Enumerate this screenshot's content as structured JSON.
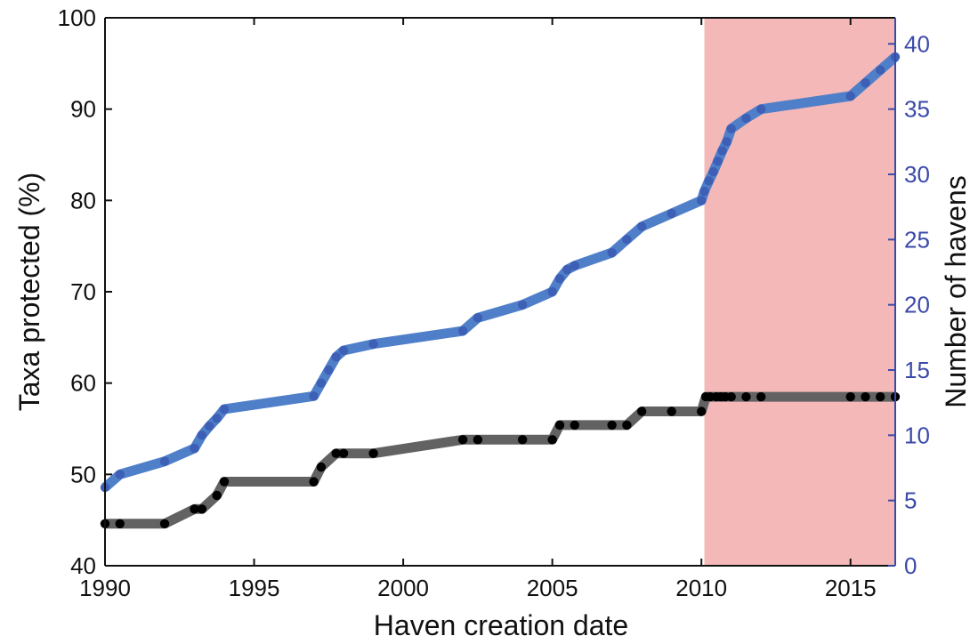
{
  "chart_data": {
    "type": "line",
    "xlabel": "Haven creation date",
    "ylabel_left": "Taxa protected (%)",
    "ylabel_right": "Number of havens",
    "xlim": [
      1990,
      2016.5
    ],
    "ylim_left": [
      40,
      100
    ],
    "ylim_right": [
      0,
      42
    ],
    "x_ticks": [
      1990,
      1995,
      2000,
      2005,
      2010,
      2015
    ],
    "y_ticks_left": [
      40,
      50,
      60,
      70,
      80,
      90,
      100
    ],
    "y_ticks_right": [
      0,
      5,
      10,
      15,
      20,
      25,
      30,
      35,
      40
    ],
    "grid": false,
    "highlight_region": {
      "x": [
        2010.1,
        2016.5
      ],
      "color": "#f4b8b8"
    },
    "colors": {
      "right_axis": "#3b4aa8",
      "havens_line": "#4f7fc9",
      "havens_marker": "#3d5fb5",
      "taxa_line": "#626262",
      "taxa_marker": "#000000"
    },
    "series": [
      {
        "axis": "right",
        "x": [
          1990,
          1990.5,
          1992,
          1993,
          1993.25,
          1993.5,
          1993.75,
          1994,
          1997,
          1997.25,
          1997.5,
          1997.75,
          1998,
          1999,
          2002,
          2002.5,
          2004,
          2005,
          2005.25,
          2005.5,
          2005.75,
          2007,
          2007.5,
          2008,
          2009,
          2010,
          2010.1,
          2010.25,
          2010.4,
          2010.55,
          2010.7,
          2010.85,
          2011,
          2011.5,
          2012,
          2015,
          2015.5,
          2016,
          2016.5
        ],
        "y": [
          6,
          7,
          8,
          9,
          10,
          10.7,
          11.3,
          12,
          13,
          14,
          15,
          16,
          16.5,
          17,
          18,
          19,
          20,
          21,
          22,
          22.7,
          23,
          24,
          25,
          26,
          27,
          28,
          28.7,
          29.5,
          30.2,
          31,
          31.8,
          32.5,
          33.5,
          34.3,
          35,
          36,
          37,
          38,
          39
        ]
      },
      {
        "axis": "left",
        "x": [
          1990,
          1990.5,
          1992,
          1993,
          1993.25,
          1993.75,
          1994,
          1997,
          1997.25,
          1997.75,
          1998,
          1999,
          2002,
          2002.5,
          2004,
          2005,
          2005.25,
          2005.75,
          2007,
          2007.5,
          2008,
          2009,
          2010,
          2010.15,
          2010.3,
          2010.5,
          2010.65,
          2010.8,
          2011,
          2011.5,
          2012,
          2015,
          2015.5,
          2016,
          2016.5
        ],
        "y": [
          44.6,
          44.6,
          44.6,
          46.2,
          46.2,
          47.7,
          49.2,
          49.2,
          50.8,
          52.3,
          52.3,
          52.3,
          53.8,
          53.8,
          53.8,
          53.8,
          55.4,
          55.4,
          55.4,
          55.4,
          56.9,
          56.9,
          56.9,
          58.5,
          58.5,
          58.5,
          58.5,
          58.5,
          58.5,
          58.5,
          58.5,
          58.5,
          58.5,
          58.5,
          58.5
        ]
      }
    ]
  }
}
